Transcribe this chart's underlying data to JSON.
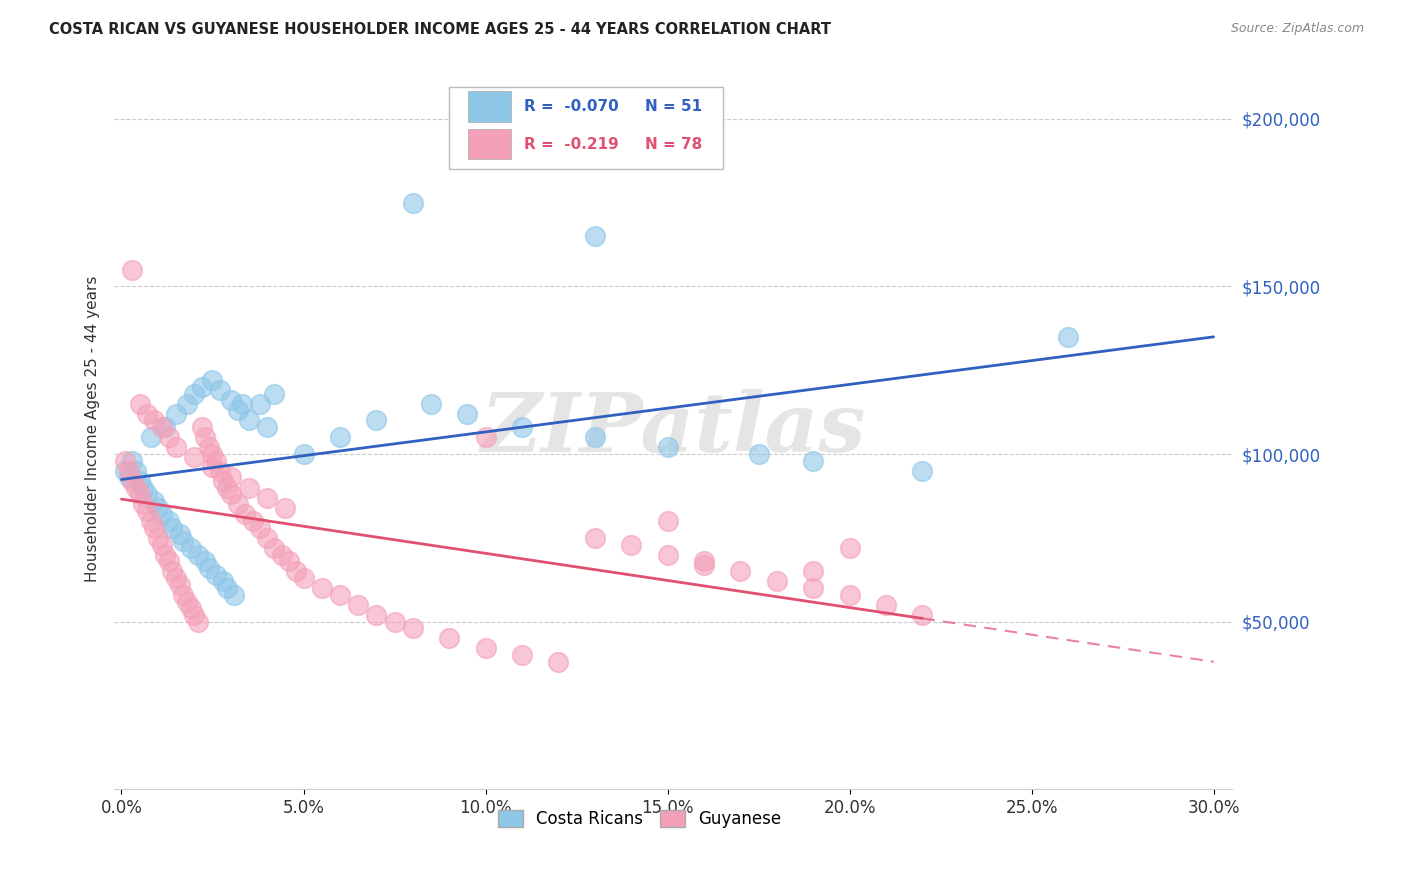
{
  "title": "COSTA RICAN VS GUYANESE HOUSEHOLDER INCOME AGES 25 - 44 YEARS CORRELATION CHART",
  "source": "Source: ZipAtlas.com",
  "ylabel": "Householder Income Ages 25 - 44 years",
  "xlabel_ticks": [
    "0.0%",
    "5.0%",
    "10.0%",
    "15.0%",
    "20.0%",
    "25.0%",
    "30.0%"
  ],
  "xlabel_vals": [
    0.0,
    0.05,
    0.1,
    0.15,
    0.2,
    0.25,
    0.3
  ],
  "ytick_labels": [
    "$50,000",
    "$100,000",
    "$150,000",
    "$200,000"
  ],
  "ytick_vals": [
    50000,
    100000,
    150000,
    200000
  ],
  "xlim": [
    -0.002,
    0.305
  ],
  "ylim": [
    0,
    215000
  ],
  "blue_color": "#8ec6e8",
  "pink_color": "#f4a0b8",
  "blue_line_color": "#3060c0",
  "pink_line_color": "#e05070",
  "legend_R_blue": "-0.070",
  "legend_N_blue": "51",
  "legend_R_pink": "-0.219",
  "legend_N_pink": "78",
  "legend_label_blue": "Costa Ricans",
  "legend_label_pink": "Guyanese",
  "watermark": "ZIPatlas",
  "blue_x": [
    0.008,
    0.012,
    0.015,
    0.018,
    0.02,
    0.022,
    0.025,
    0.027,
    0.03,
    0.032,
    0.003,
    0.004,
    0.005,
    0.006,
    0.007,
    0.009,
    0.01,
    0.011,
    0.013,
    0.014,
    0.016,
    0.017,
    0.019,
    0.021,
    0.023,
    0.024,
    0.026,
    0.028,
    0.029,
    0.031,
    0.035,
    0.038,
    0.042,
    0.05,
    0.06,
    0.07,
    0.085,
    0.095,
    0.11,
    0.13,
    0.15,
    0.175,
    0.19,
    0.22,
    0.26,
    0.001,
    0.002,
    0.033,
    0.04,
    0.13,
    0.08
  ],
  "blue_y": [
    105000,
    108000,
    112000,
    115000,
    118000,
    120000,
    122000,
    119000,
    116000,
    113000,
    98000,
    95000,
    92000,
    90000,
    88000,
    86000,
    84000,
    82000,
    80000,
    78000,
    76000,
    74000,
    72000,
    70000,
    68000,
    66000,
    64000,
    62000,
    60000,
    58000,
    110000,
    115000,
    118000,
    100000,
    105000,
    110000,
    115000,
    112000,
    108000,
    105000,
    102000,
    100000,
    98000,
    95000,
    135000,
    95000,
    93000,
    115000,
    108000,
    165000,
    175000
  ],
  "pink_x": [
    0.001,
    0.002,
    0.003,
    0.004,
    0.005,
    0.006,
    0.007,
    0.008,
    0.009,
    0.01,
    0.011,
    0.012,
    0.013,
    0.014,
    0.015,
    0.016,
    0.017,
    0.018,
    0.019,
    0.02,
    0.021,
    0.022,
    0.023,
    0.024,
    0.025,
    0.026,
    0.027,
    0.028,
    0.029,
    0.03,
    0.032,
    0.034,
    0.036,
    0.038,
    0.04,
    0.042,
    0.044,
    0.046,
    0.048,
    0.05,
    0.055,
    0.06,
    0.065,
    0.07,
    0.075,
    0.08,
    0.09,
    0.1,
    0.11,
    0.12,
    0.13,
    0.14,
    0.15,
    0.16,
    0.17,
    0.18,
    0.19,
    0.2,
    0.21,
    0.22,
    0.003,
    0.005,
    0.007,
    0.009,
    0.011,
    0.013,
    0.015,
    0.02,
    0.025,
    0.03,
    0.035,
    0.04,
    0.045,
    0.1,
    0.15,
    0.2,
    0.16,
    0.19
  ],
  "pink_y": [
    98000,
    95000,
    92000,
    90000,
    88000,
    85000,
    83000,
    80000,
    78000,
    75000,
    73000,
    70000,
    68000,
    65000,
    63000,
    61000,
    58000,
    56000,
    54000,
    52000,
    50000,
    108000,
    105000,
    102000,
    100000,
    98000,
    95000,
    92000,
    90000,
    88000,
    85000,
    82000,
    80000,
    78000,
    75000,
    72000,
    70000,
    68000,
    65000,
    63000,
    60000,
    58000,
    55000,
    52000,
    50000,
    48000,
    45000,
    42000,
    40000,
    38000,
    75000,
    73000,
    70000,
    68000,
    65000,
    62000,
    60000,
    58000,
    55000,
    52000,
    155000,
    115000,
    112000,
    110000,
    108000,
    105000,
    102000,
    99000,
    96000,
    93000,
    90000,
    87000,
    84000,
    105000,
    80000,
    72000,
    67000,
    65000
  ]
}
